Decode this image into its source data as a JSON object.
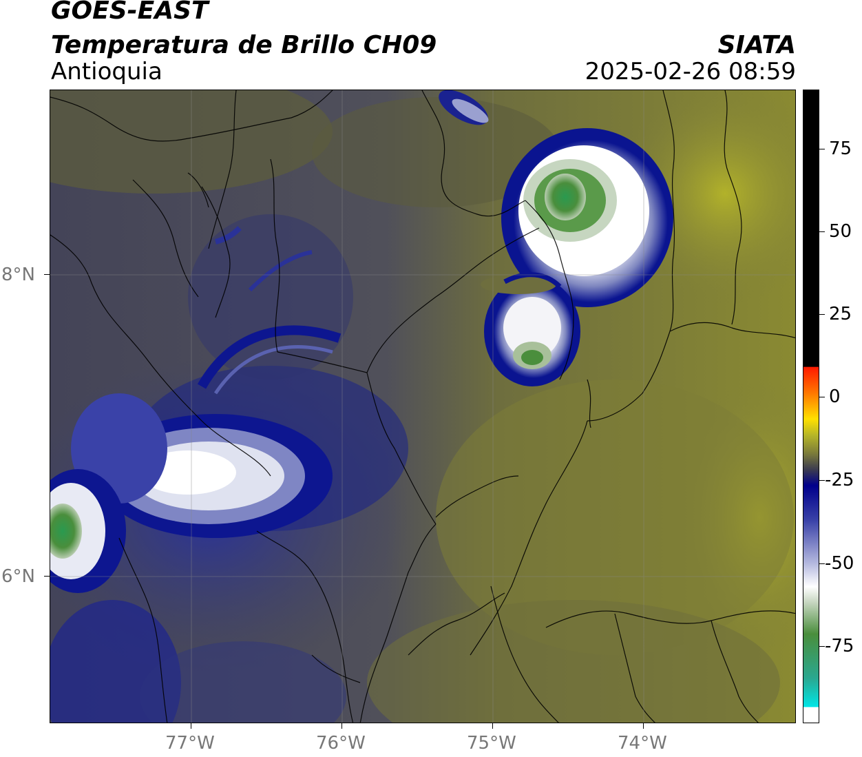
{
  "header": {
    "satellite": "GOES-EAST",
    "product": "Temperatura de Brillo CH09",
    "region": "Antioquia",
    "agency": "SIATA",
    "datetime": "2025-02-26 08:59"
  },
  "map": {
    "lat_labels": [
      "8°N",
      "6°N"
    ],
    "lon_labels": [
      "77°W",
      "76°W",
      "75°W",
      "74°W"
    ]
  },
  "colorbar": {
    "labels": [
      "75",
      "50",
      "25",
      "0",
      "-25",
      "-50",
      "-75"
    ],
    "colors": {
      "warm": "#000000",
      "red": "#ff0000",
      "orange": "#ff9900",
      "yellow": "#ffff00",
      "olive": "#8a8a2a",
      "dark_gray": "#555555",
      "navy": "#00008b",
      "white": "#ffffff",
      "green": "#2e8b3a",
      "cyan": "#00e5e5"
    }
  }
}
